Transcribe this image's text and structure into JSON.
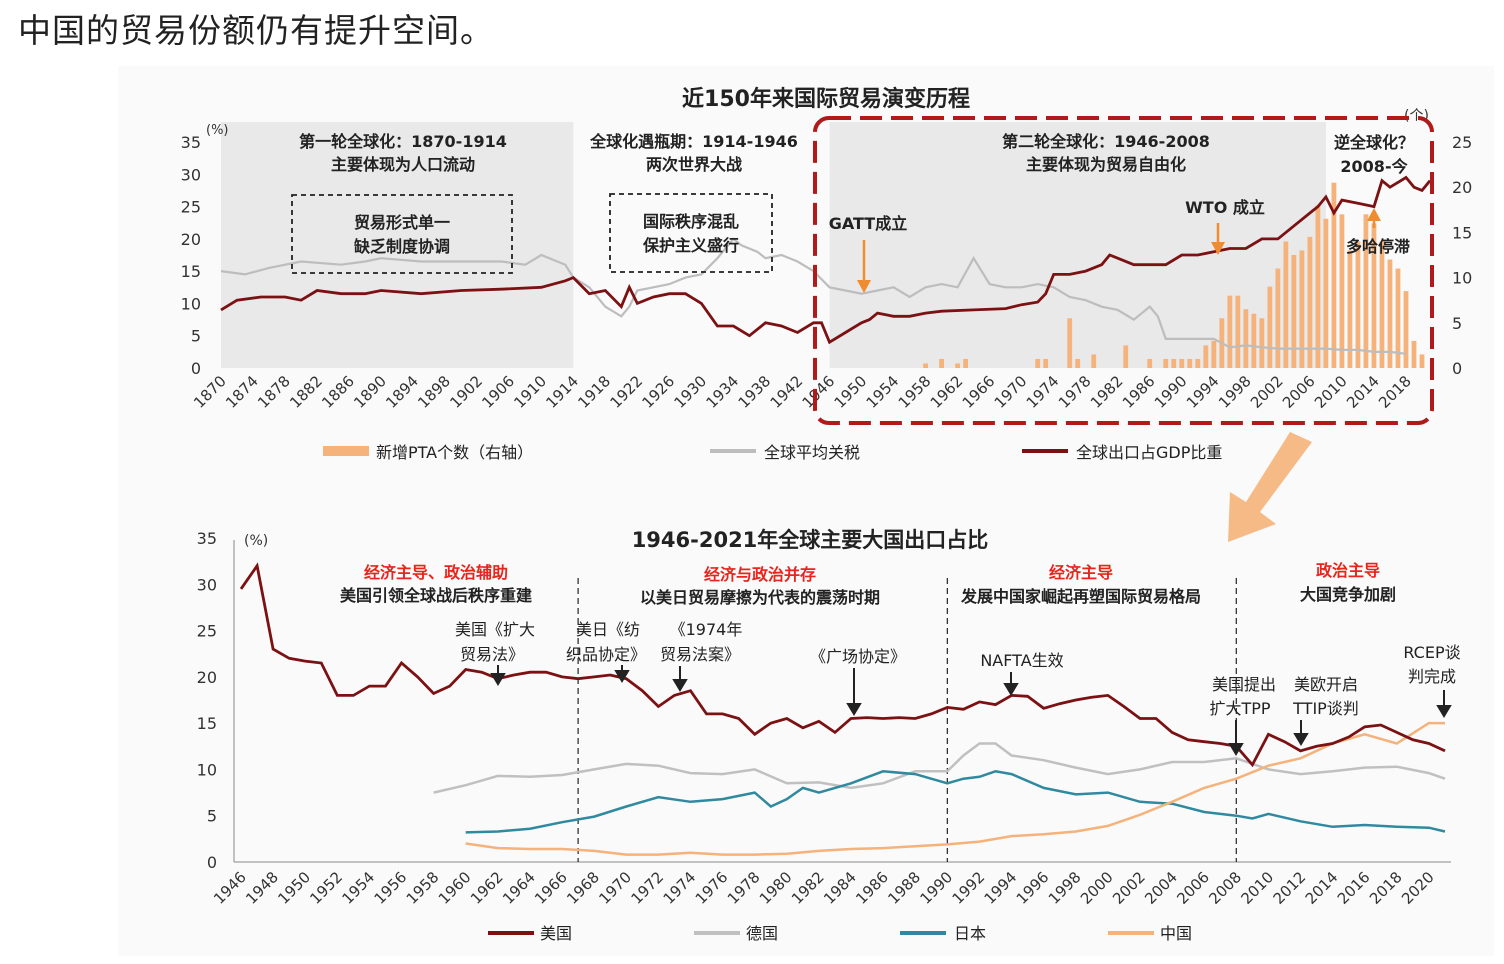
{
  "page": {
    "heading": "中国的贸易份额仍有提升空间。"
  },
  "colors": {
    "export_gdp": "#7b1113",
    "tariff": "#bdbdbd",
    "pta": "#f5b27a",
    "usa": "#7b1113",
    "germany": "#c0c0c0",
    "japan": "#2f8aa0",
    "china": "#f5b27a",
    "phase_red": "#e8241c",
    "dash_red": "#b01a1a",
    "arrow_orange": "#f08c30",
    "shade": "#e9e9e9"
  },
  "chart_data": [
    {
      "type": "line",
      "title": "近150年来国际贸易演变历程",
      "left_unit": "(%)",
      "right_unit": "(个)",
      "ylim_left": [
        0,
        35
      ],
      "ylim_right": [
        0,
        25
      ],
      "yticks_left": [
        "0",
        "5",
        "10",
        "15",
        "20",
        "25",
        "30",
        "35"
      ],
      "yticks_right": [
        "0",
        "5",
        "10",
        "15",
        "20",
        "25"
      ],
      "xlim": [
        1870,
        2021
      ],
      "xticks": [
        "1870",
        "1874",
        "1878",
        "1882",
        "1886",
        "1890",
        "1894",
        "1898",
        "1902",
        "1906",
        "1910",
        "1914",
        "1918",
        "1922",
        "1926",
        "1930",
        "1934",
        "1938",
        "1942",
        "1946",
        "1950",
        "1954",
        "1958",
        "1962",
        "1966",
        "1970",
        "1974",
        "1978",
        "1982",
        "1986",
        "1990",
        "1994",
        "1998",
        "2002",
        "2006",
        "2010",
        "2014",
        "2018"
      ],
      "shaded_ranges": [
        [
          1870,
          1914
        ],
        [
          1946,
          2008
        ]
      ],
      "series": [
        {
          "name": "全球出口占GDP比重",
          "axis": "left",
          "x": [
            1870,
            1872,
            1875,
            1878,
            1880,
            1882,
            1885,
            1888,
            1890,
            1895,
            1900,
            1905,
            1910,
            1913,
            1914,
            1916,
            1918,
            1920,
            1921,
            1922,
            1924,
            1926,
            1928,
            1930,
            1932,
            1934,
            1936,
            1938,
            1940,
            1942,
            1944,
            1945,
            1946,
            1948,
            1950,
            1951,
            1952,
            1954,
            1956,
            1958,
            1960,
            1964,
            1968,
            1970,
            1972,
            1973,
            1974,
            1976,
            1978,
            1980,
            1981,
            1982,
            1984,
            1986,
            1988,
            1990,
            1992,
            1994,
            1996,
            1998,
            2000,
            2002,
            2004,
            2006,
            2007,
            2008,
            2009,
            2010,
            2012,
            2014,
            2015,
            2016,
            2018,
            2019,
            2020,
            2021
          ],
          "y": [
            9,
            10.5,
            11,
            11,
            10.5,
            12,
            11.5,
            11.5,
            12,
            11.5,
            12,
            12.2,
            12.5,
            13.5,
            14,
            11.5,
            12,
            9.5,
            12.5,
            10,
            11,
            11.5,
            11.5,
            10,
            6.5,
            6.5,
            5,
            7,
            6.5,
            5.5,
            7,
            7,
            4,
            5.5,
            7,
            7.5,
            8.5,
            8,
            8,
            8.5,
            8.8,
            9,
            9.2,
            9.8,
            10.2,
            11.5,
            14.5,
            14.5,
            15,
            16,
            17.5,
            17,
            16,
            16,
            16,
            17.5,
            17.5,
            18,
            18.5,
            18.5,
            20,
            20,
            22,
            24,
            25,
            26.5,
            24,
            26,
            25.5,
            25,
            29,
            28,
            29.5,
            28,
            27.5,
            29
          ]
        },
        {
          "name": "全球平均关税",
          "axis": "left",
          "x": [
            1870,
            1873,
            1876,
            1880,
            1885,
            1888,
            1890,
            1895,
            1900,
            1905,
            1908,
            1910,
            1913,
            1914,
            1916,
            1918,
            1920,
            1921,
            1922,
            1924,
            1926,
            1928,
            1930,
            1932,
            1934,
            1935,
            1937,
            1938,
            1940,
            1942,
            1944,
            1946,
            1948,
            1950,
            1952,
            1954,
            1956,
            1958,
            1960,
            1962,
            1964,
            1966,
            1968,
            1970,
            1972,
            1974,
            1976,
            1978,
            1980,
            1982,
            1984,
            1986,
            1987,
            1988,
            1990,
            1992,
            1994,
            1996,
            1998,
            2000,
            2002,
            2004,
            2006,
            2008,
            2010,
            2012,
            2014,
            2016,
            2018
          ],
          "y": [
            15,
            14.5,
            15.5,
            16.5,
            16,
            16.5,
            17,
            16.5,
            16.5,
            16.5,
            16,
            17.5,
            16,
            14,
            12.5,
            9.5,
            8,
            9.5,
            12,
            12.5,
            13,
            14,
            14.5,
            17,
            20,
            19,
            18,
            17,
            17.5,
            16.5,
            15,
            12.5,
            12,
            11.5,
            12,
            12.5,
            11,
            12.5,
            13,
            12.5,
            17,
            13,
            12.5,
            12.5,
            13,
            12.5,
            11,
            10.5,
            9.5,
            9,
            7.5,
            9.5,
            8,
            4.5,
            4.5,
            4.5,
            4.5,
            3.2,
            3.5,
            3.2,
            3,
            3,
            3,
            3,
            2.8,
            2.8,
            2.5,
            2.5,
            2.2
          ]
        }
      ],
      "bars": {
        "name": "新增PTA个数（右轴）",
        "axis": "right",
        "x": [
          1958,
          1960,
          1962,
          1963,
          1972,
          1973,
          1976,
          1977,
          1979,
          1983,
          1986,
          1988,
          1989,
          1990,
          1991,
          1992,
          1993,
          1994,
          1995,
          1996,
          1997,
          1998,
          1999,
          2000,
          2001,
          2002,
          2003,
          2004,
          2005,
          2006,
          2007,
          2008,
          2009,
          2010,
          2011,
          2012,
          2013,
          2014,
          2015,
          2016,
          2017,
          2018,
          2019,
          2020
        ],
        "y": [
          0.5,
          1,
          0.5,
          1,
          1,
          1,
          5.5,
          1,
          1.5,
          2.5,
          1,
          1,
          1,
          1,
          1,
          1,
          2.5,
          3,
          5.5,
          8,
          8,
          6.5,
          6,
          5.5,
          9,
          11,
          14,
          12.5,
          13,
          14.5,
          18,
          16.5,
          20.5,
          17,
          13,
          14,
          17,
          16,
          14,
          12,
          11,
          8.5,
          3,
          1.5
        ]
      },
      "legend": [
        "新增PTA个数（右轴）",
        "全球平均关税",
        "全球出口占GDP比重"
      ],
      "annotations": {
        "phase1_title": "第一轮全球化：1870-1914",
        "phase1_sub": "主要体现为人口流动",
        "box1_line1": "贸易形式单一",
        "box1_line2": "缺乏制度协调",
        "phase2_title": "全球化遇瓶期：1914-1946",
        "phase2_sub": "两次世界大战",
        "box2_line1": "国际秩序混乱",
        "box2_line2": "保护主义盛行",
        "phase3_title": "第二轮全球化：1946-2008",
        "phase3_sub": "主要体现为贸易自由化",
        "phase4_title": "逆全球化？",
        "phase4_sub": "2008-今",
        "gatt": "GATT成立",
        "wto": "WTO 成立",
        "doha": "多哈停滞"
      }
    },
    {
      "type": "line",
      "title": "1946-2021年全球主要大国出口占比",
      "y_unit": "(%)",
      "ylim": [
        0,
        35
      ],
      "yticks": [
        "0",
        "5",
        "10",
        "15",
        "20",
        "25",
        "30",
        "35"
      ],
      "xlim": [
        1946,
        2021
      ],
      "xticks": [
        "1946",
        "1948",
        "1950",
        "1952",
        "1954",
        "1956",
        "1958",
        "1960",
        "1962",
        "1964",
        "1966",
        "1968",
        "1970",
        "1972",
        "1974",
        "1976",
        "1978",
        "1980",
        "1982",
        "1984",
        "1986",
        "1988",
        "1990",
        "1992",
        "1994",
        "1996",
        "1998",
        "2000",
        "2002",
        "2004",
        "2006",
        "2008",
        "2010",
        "2012",
        "2014",
        "2016",
        "2018",
        "2020"
      ],
      "dividers": [
        1967,
        1990,
        2008
      ],
      "series": [
        {
          "name": "美国",
          "x": [
            1946,
            1947,
            1948,
            1949,
            1950,
            1951,
            1952,
            1953,
            1954,
            1955,
            1956,
            1957,
            1958,
            1959,
            1960,
            1961,
            1962,
            1963,
            1964,
            1965,
            1966,
            1967,
            1968,
            1969,
            1970,
            1971,
            1972,
            1973,
            1974,
            1975,
            1976,
            1977,
            1978,
            1979,
            1980,
            1981,
            1982,
            1983,
            1984,
            1985,
            1986,
            1987,
            1988,
            1989,
            1990,
            1991,
            1992,
            1993,
            1994,
            1995,
            1996,
            1997,
            1998,
            1999,
            2000,
            2001,
            2002,
            2003,
            2004,
            2005,
            2006,
            2007,
            2008,
            2009,
            2010,
            2011,
            2012,
            2013,
            2014,
            2015,
            2016,
            2017,
            2018,
            2019,
            2020,
            2021
          ],
          "y": [
            29.5,
            32,
            23,
            22,
            21.7,
            21.5,
            18,
            18,
            19,
            19,
            21.5,
            20,
            18.2,
            19,
            20.8,
            20.5,
            19.8,
            20.2,
            20.5,
            20.5,
            20,
            19.8,
            20,
            20.2,
            19.8,
            18.5,
            16.8,
            18,
            18.5,
            16,
            16,
            15.5,
            13.8,
            15,
            15.5,
            14.5,
            15.2,
            14,
            15.5,
            15.6,
            15.5,
            15.6,
            15.5,
            16,
            16.7,
            16.5,
            17.3,
            17,
            18,
            17.9,
            16.6,
            17.1,
            17.5,
            17.8,
            18,
            16.8,
            15.5,
            15.5,
            14,
            13.2,
            13,
            12.8,
            12.5,
            10.5,
            13.8,
            13,
            12,
            12.5,
            12.8,
            13.5,
            14.6,
            14.8,
            14,
            13.2,
            12.8,
            12
          ]
        },
        {
          "name": "德国",
          "x": [
            1958,
            1960,
            1962,
            1964,
            1966,
            1968,
            1970,
            1972,
            1974,
            1976,
            1978,
            1980,
            1982,
            1984,
            1986,
            1988,
            1990,
            1991,
            1992,
            1993,
            1994,
            1996,
            1998,
            2000,
            2002,
            2004,
            2006,
            2008,
            2010,
            2012,
            2014,
            2016,
            2018,
            2020,
            2021
          ],
          "y": [
            7.5,
            8.3,
            9.3,
            9.2,
            9.4,
            10,
            10.6,
            10.4,
            9.6,
            9.5,
            10,
            8.5,
            8.6,
            8,
            8.5,
            9.8,
            9.8,
            11.5,
            12.8,
            12.8,
            11.5,
            11,
            10.2,
            9.5,
            10,
            10.8,
            10.8,
            11.2,
            10,
            9.5,
            9.8,
            10.2,
            10.3,
            9.6,
            9
          ]
        },
        {
          "name": "日本",
          "x": [
            1960,
            1962,
            1964,
            1966,
            1968,
            1970,
            1972,
            1974,
            1976,
            1978,
            1979,
            1980,
            1981,
            1982,
            1984,
            1986,
            1988,
            1990,
            1991,
            1992,
            1993,
            1994,
            1996,
            1998,
            2000,
            2002,
            2004,
            2006,
            2008,
            2009,
            2010,
            2012,
            2014,
            2016,
            2018,
            2020,
            2021
          ],
          "y": [
            3.2,
            3.3,
            3.6,
            4.3,
            4.9,
            6,
            7,
            6.5,
            6.8,
            7.5,
            6,
            6.8,
            8,
            7.5,
            8.5,
            9.8,
            9.5,
            8.5,
            9,
            9.2,
            9.8,
            9.5,
            8,
            7.3,
            7.5,
            6.5,
            6.3,
            5.4,
            5.0,
            4.7,
            5.2,
            4.4,
            3.8,
            4.0,
            3.8,
            3.7,
            3.3
          ]
        },
        {
          "name": "中国",
          "x": [
            1960,
            1962,
            1964,
            1966,
            1968,
            1970,
            1972,
            1974,
            1976,
            1978,
            1980,
            1982,
            1984,
            1986,
            1988,
            1990,
            1992,
            1994,
            1996,
            1998,
            2000,
            2002,
            2004,
            2006,
            2008,
            2010,
            2012,
            2014,
            2016,
            2018,
            2020,
            2021
          ],
          "y": [
            2,
            1.5,
            1.4,
            1.4,
            1.2,
            0.8,
            0.8,
            1,
            0.8,
            0.8,
            0.9,
            1.2,
            1.4,
            1.5,
            1.7,
            1.9,
            2.2,
            2.8,
            3,
            3.3,
            3.9,
            5.1,
            6.5,
            8,
            9,
            10.4,
            11.2,
            12.8,
            13.8,
            12.8,
            15,
            15
          ]
        }
      ],
      "legend": [
        "美国",
        "德国",
        "日本",
        "中国"
      ],
      "annotations": {
        "p1_red": "经济主导、政治辅助",
        "p1_black": "美国引领全球战后秩序重建",
        "p2_red": "经济与政治并存",
        "p2_black": "以美日贸易摩擦为代表的震荡时期",
        "p3_red": "经济主导",
        "p3_black": "发展中国家崛起再塑国际贸易格局",
        "p4_red": "政治主导",
        "p4_black": "大国竞争加剧",
        "ev1_l1": "美国《扩大",
        "ev1_l2": "贸易法》",
        "ev2_l1": "美日《纺",
        "ev2_l2": "织品协定》",
        "ev3_l1": "《1974年",
        "ev3_l2": "贸易法案》",
        "ev4": "《广场协定》",
        "ev5": "NAFTA生效",
        "ev6_l1": "美国提出",
        "ev6_l2": "扩大TPP",
        "ev7_l1": "美欧开启",
        "ev7_l2": "TTIP谈判",
        "ev8_l1": "RCEP谈",
        "ev8_l2": "判完成"
      }
    }
  ]
}
